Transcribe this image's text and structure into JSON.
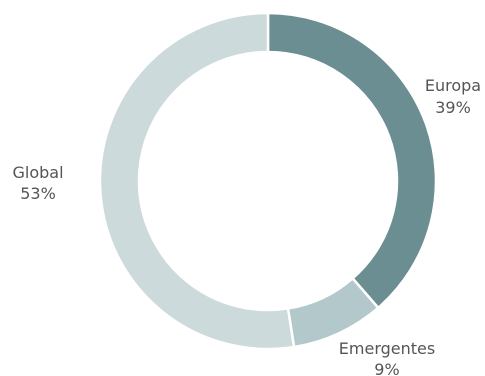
{
  "chart_data": {
    "type": "pie",
    "variant": "donut",
    "categories": [
      "Europa",
      "Emergentes",
      "Global"
    ],
    "values": [
      39,
      9,
      53
    ],
    "value_labels": [
      "39%",
      "9%",
      "53%"
    ],
    "colors": [
      "#6b8e92",
      "#b3c8cb",
      "#cddadb"
    ],
    "legend": "none",
    "start": "top",
    "direction": "clockwise"
  }
}
